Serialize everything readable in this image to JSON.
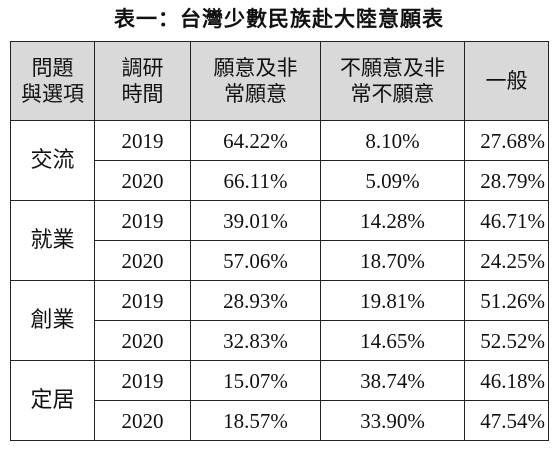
{
  "title": "表一：台灣少數民族赴大陸意願表",
  "headers": [
    [
      "問題",
      "與選項"
    ],
    [
      "調研",
      "時間"
    ],
    [
      "願意及非",
      "常願意"
    ],
    [
      "不願意及非",
      "常不願意"
    ],
    [
      "一般"
    ]
  ],
  "groups": [
    {
      "topic": "交流",
      "rows": [
        {
          "year": "2019",
          "willing": "64.22%",
          "unwilling": "8.10%",
          "neutral": "27.68%"
        },
        {
          "year": "2020",
          "willing": "66.11%",
          "unwilling": "5.09%",
          "neutral": "28.79%"
        }
      ]
    },
    {
      "topic": "就業",
      "rows": [
        {
          "year": "2019",
          "willing": "39.01%",
          "unwilling": "14.28%",
          "neutral": "46.71%"
        },
        {
          "year": "2020",
          "willing": "57.06%",
          "unwilling": "18.70%",
          "neutral": "24.25%"
        }
      ]
    },
    {
      "topic": "創業",
      "rows": [
        {
          "year": "2019",
          "willing": "28.93%",
          "unwilling": "19.81%",
          "neutral": "51.26%"
        },
        {
          "year": "2020",
          "willing": "32.83%",
          "unwilling": "14.65%",
          "neutral": "52.52%"
        }
      ]
    },
    {
      "topic": "定居",
      "rows": [
        {
          "year": "2019",
          "willing": "15.07%",
          "unwilling": "38.74%",
          "neutral": "46.18%"
        },
        {
          "year": "2020",
          "willing": "18.57%",
          "unwilling": "33.90%",
          "neutral": "47.54%"
        }
      ]
    }
  ]
}
